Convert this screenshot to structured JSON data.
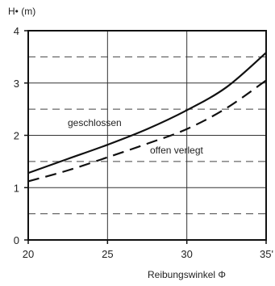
{
  "chart_data": {
    "type": "line",
    "ylabel": "H• (m)",
    "xlabel": "Reibungswinkel Φ",
    "xlim": [
      20,
      35
    ],
    "ylim": [
      0,
      4
    ],
    "x_ticks": [
      20,
      25,
      30,
      35
    ],
    "x_tick_labels": [
      "20",
      "25",
      "30",
      "35'"
    ],
    "y_ticks": [
      0,
      1,
      2,
      3,
      4
    ],
    "y_tick_labels": [
      "0",
      "1",
      "2",
      "3",
      "4"
    ],
    "grid": {
      "vertical_solid_at_x": [
        25,
        30
      ],
      "horizontal_dashed_at_y": [
        0.5,
        1.5,
        2.5,
        3.5
      ],
      "horizontal_solid_at_y": [
        1,
        2,
        3
      ]
    },
    "series": [
      {
        "name": "geschlossen",
        "style": "solid",
        "color": "#111111",
        "x": [
          20,
          22.5,
          25,
          27.5,
          30,
          32.5,
          35
        ],
        "y": [
          1.28,
          1.55,
          1.82,
          2.12,
          2.48,
          2.92,
          3.58
        ]
      },
      {
        "name": "offen verlegt",
        "style": "dashed",
        "color": "#111111",
        "x": [
          20,
          22.5,
          25,
          27.5,
          30,
          32.5,
          35
        ],
        "y": [
          1.12,
          1.33,
          1.58,
          1.84,
          2.12,
          2.52,
          3.05
        ]
      }
    ]
  }
}
